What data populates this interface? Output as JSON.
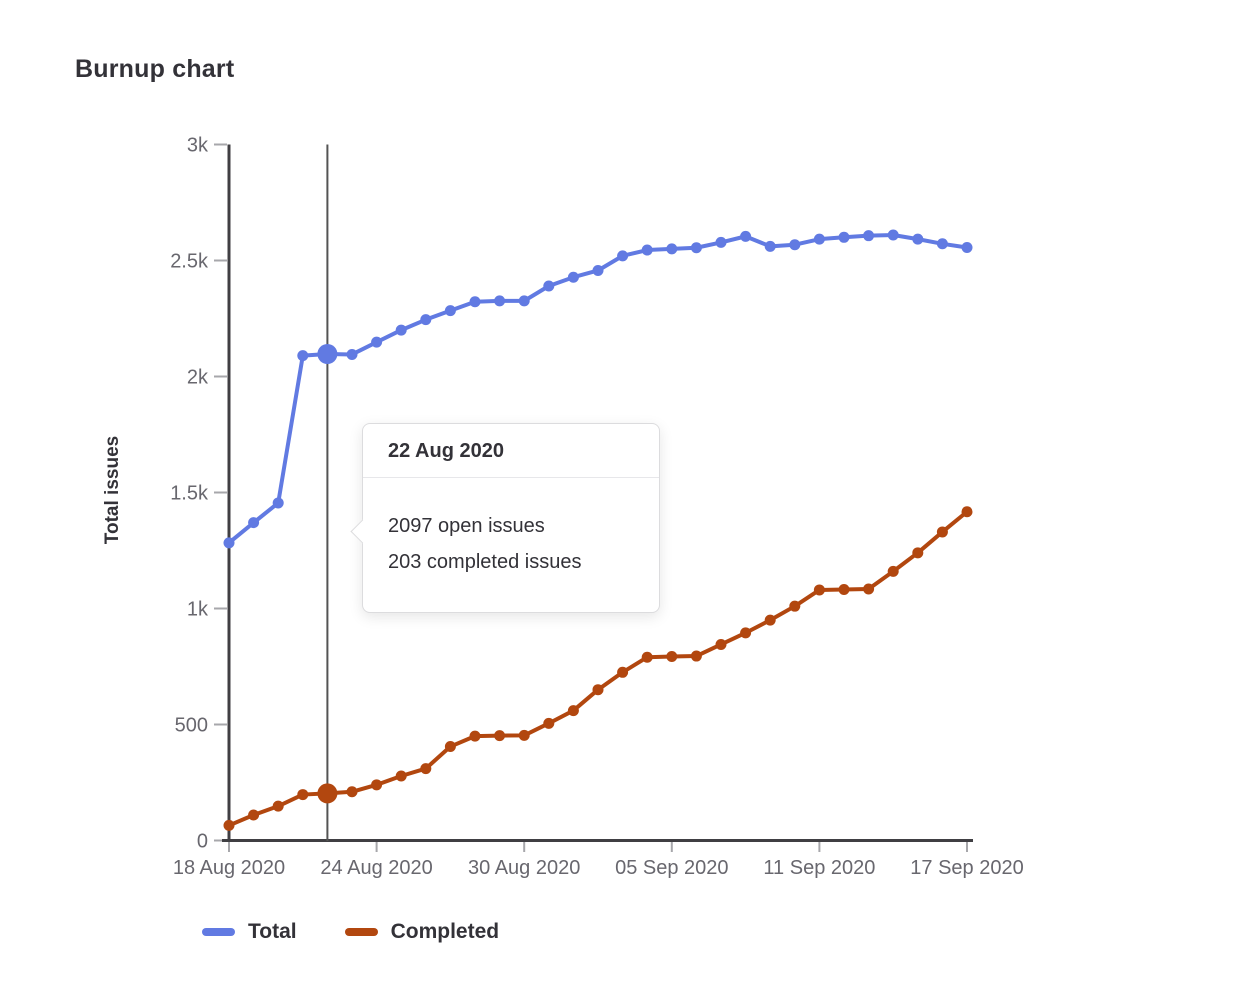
{
  "page": {
    "title": "Burnup chart"
  },
  "colors": {
    "total": "#617ae2",
    "completed": "#b2470f",
    "axis_line": "#403f43",
    "tick_mark": "#a7a7ab",
    "tick_label": "#68676e",
    "selection_line": "#545454",
    "tooltip_border": "#dcdcde"
  },
  "tooltip": {
    "title": "22 Aug 2020",
    "open_line": "2097 open issues",
    "completed_line": "203 completed issues"
  },
  "legend": {
    "items": [
      {
        "label": "Total",
        "series": "Total"
      },
      {
        "label": "Completed",
        "series": "Completed"
      }
    ]
  },
  "chart_data": {
    "type": "line",
    "title": "Burnup chart",
    "xlabel": "",
    "ylabel": "Total issues",
    "ylim": [
      0,
      3000
    ],
    "grid": false,
    "legend_position": "bottom",
    "x": [
      "18 Aug 2020",
      "19 Aug 2020",
      "20 Aug 2020",
      "21 Aug 2020",
      "22 Aug 2020",
      "23 Aug 2020",
      "24 Aug 2020",
      "25 Aug 2020",
      "26 Aug 2020",
      "27 Aug 2020",
      "28 Aug 2020",
      "29 Aug 2020",
      "30 Aug 2020",
      "31 Aug 2020",
      "01 Sep 2020",
      "02 Sep 2020",
      "03 Sep 2020",
      "04 Sep 2020",
      "05 Sep 2020",
      "06 Sep 2020",
      "07 Sep 2020",
      "08 Sep 2020",
      "09 Sep 2020",
      "10 Sep 2020",
      "11 Sep 2020",
      "12 Sep 2020",
      "13 Sep 2020",
      "14 Sep 2020",
      "15 Sep 2020",
      "16 Sep 2020",
      "17 Sep 2020"
    ],
    "series": [
      {
        "name": "Total",
        "color": "#617ae2",
        "values": [
          1283,
          1370,
          1455,
          2090,
          2097,
          2095,
          2148,
          2200,
          2245,
          2284,
          2322,
          2326,
          2326,
          2390,
          2428,
          2457,
          2520,
          2545,
          2550,
          2555,
          2578,
          2604,
          2561,
          2568,
          2592,
          2600,
          2607,
          2610,
          2592,
          2572,
          2556
        ]
      },
      {
        "name": "Completed",
        "color": "#b2470f",
        "values": [
          65,
          110,
          148,
          198,
          203,
          210,
          240,
          278,
          310,
          405,
          450,
          452,
          453,
          505,
          560,
          650,
          725,
          790,
          793,
          795,
          845,
          895,
          950,
          1010,
          1080,
          1082,
          1084,
          1160,
          1240,
          1330,
          1417
        ]
      }
    ],
    "selected_index": 4,
    "selected_date": "22 Aug 2020",
    "y_ticks": [
      {
        "value": 0,
        "label": "0"
      },
      {
        "value": 500,
        "label": "500"
      },
      {
        "value": 1000,
        "label": "1k"
      },
      {
        "value": 1500,
        "label": "1.5k"
      },
      {
        "value": 2000,
        "label": "2k"
      },
      {
        "value": 2500,
        "label": "2.5k"
      },
      {
        "value": 3000,
        "label": "3k"
      }
    ],
    "x_tick_indices": [
      0,
      6,
      12,
      18,
      24,
      30
    ]
  }
}
